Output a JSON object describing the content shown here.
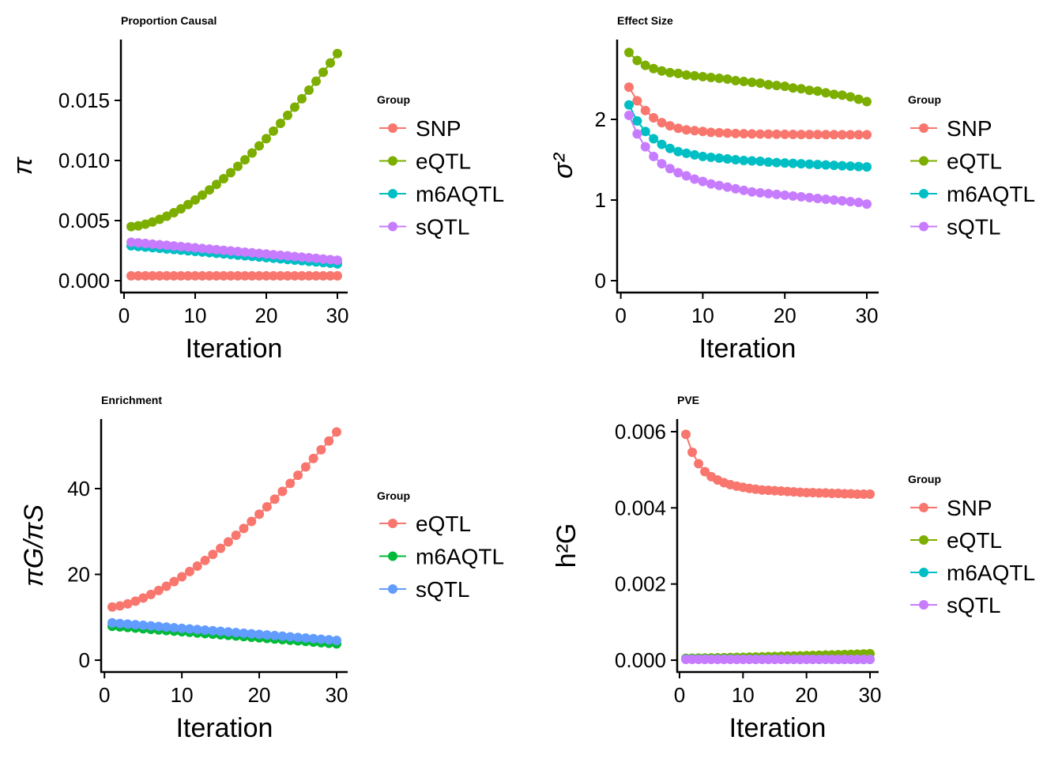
{
  "chart_data": [
    {
      "type": "line",
      "title": "Proportion Causal",
      "xlabel": "Iteration",
      "ylabel": "π",
      "xlim": [
        0,
        30
      ],
      "ylim": [
        -0.0005,
        0.0195
      ],
      "xticks": [
        0,
        10,
        20,
        30
      ],
      "yticks": [
        0.0,
        0.005,
        0.01,
        0.015
      ],
      "ytick_labels": [
        "0.000",
        "0.005",
        "0.010",
        "0.015"
      ],
      "legend": {
        "title": "Group",
        "position": "right"
      },
      "series": [
        {
          "name": "SNP",
          "color": "#F8766D",
          "start": 0.0004,
          "end": 0.0004,
          "shape": 1
        },
        {
          "name": "eQTL",
          "color": "#7CAE00",
          "start": 0.0045,
          "end": 0.0189,
          "shape": 1.6
        },
        {
          "name": "m6AQTL",
          "color": "#00BFC4",
          "start": 0.0029,
          "end": 0.0014,
          "shape": 1
        },
        {
          "name": "sQTL",
          "color": "#C77CFF",
          "start": 0.0032,
          "end": 0.0017,
          "shape": 1
        }
      ]
    },
    {
      "type": "line",
      "title": "Effect Size",
      "xlabel": "Iteration",
      "ylabel": "σ²",
      "xlim": [
        0,
        30
      ],
      "ylim": [
        -0.12,
        3.05
      ],
      "xticks": [
        0,
        10,
        20,
        30
      ],
      "yticks": [
        0,
        1,
        2
      ],
      "ytick_labels": [
        "0",
        "1",
        "2"
      ],
      "legend": {
        "title": "Group",
        "position": "right"
      },
      "series": [
        {
          "name": "SNP",
          "color": "#F8766D",
          "values": [
            2.4,
            2.23,
            2.11,
            2.02,
            1.96,
            1.92,
            1.89,
            1.87,
            1.86,
            1.85,
            1.84,
            1.835,
            1.83,
            1.825,
            1.822,
            1.82,
            1.818,
            1.817,
            1.816,
            1.815,
            1.814,
            1.813,
            1.812,
            1.812,
            1.811,
            1.811,
            1.81,
            1.81,
            1.81,
            1.81
          ]
        },
        {
          "name": "eQTL",
          "color": "#7CAE00",
          "values": [
            2.83,
            2.73,
            2.67,
            2.63,
            2.6,
            2.58,
            2.57,
            2.55,
            2.54,
            2.53,
            2.52,
            2.51,
            2.5,
            2.48,
            2.47,
            2.46,
            2.45,
            2.43,
            2.42,
            2.41,
            2.39,
            2.38,
            2.36,
            2.35,
            2.33,
            2.31,
            2.3,
            2.28,
            2.25,
            2.22
          ]
        },
        {
          "name": "m6AQTL",
          "color": "#00BFC4",
          "values": [
            2.18,
            1.98,
            1.85,
            1.76,
            1.69,
            1.64,
            1.6,
            1.58,
            1.56,
            1.54,
            1.53,
            1.52,
            1.51,
            1.5,
            1.49,
            1.485,
            1.48,
            1.47,
            1.465,
            1.46,
            1.455,
            1.45,
            1.445,
            1.44,
            1.435,
            1.43,
            1.425,
            1.42,
            1.415,
            1.41
          ]
        },
        {
          "name": "sQTL",
          "color": "#C77CFF",
          "values": [
            2.05,
            1.82,
            1.66,
            1.54,
            1.45,
            1.39,
            1.34,
            1.3,
            1.26,
            1.23,
            1.2,
            1.18,
            1.16,
            1.14,
            1.12,
            1.1,
            1.09,
            1.08,
            1.07,
            1.06,
            1.05,
            1.04,
            1.03,
            1.02,
            1.01,
            1.0,
            0.99,
            0.98,
            0.97,
            0.95
          ]
        }
      ]
    },
    {
      "type": "line",
      "title": "Enrichment",
      "xlabel": "Iteration",
      "ylabel": "πG/πS",
      "xlim": [
        0,
        30
      ],
      "ylim": [
        -2.5,
        56
      ],
      "xticks": [
        0,
        10,
        20,
        30
      ],
      "yticks": [
        0,
        20,
        40
      ],
      "ytick_labels": [
        "0",
        "20",
        "40"
      ],
      "legend": {
        "title": "Group",
        "position": "right"
      },
      "series": [
        {
          "name": "eQTL",
          "color": "#F8766D",
          "start": 12.4,
          "end": 53.2,
          "shape": 1.5
        },
        {
          "name": "m6AQTL",
          "color": "#00BA38",
          "start": 7.9,
          "end": 3.8,
          "shape": 1
        },
        {
          "name": "sQTL",
          "color": "#619CFF",
          "start": 8.7,
          "end": 4.6,
          "shape": 1
        }
      ]
    },
    {
      "type": "line",
      "title": "PVE",
      "xlabel": "Iteration",
      "ylabel": "h²G",
      "xlim": [
        0,
        30
      ],
      "ylim": [
        -0.0003,
        0.0062
      ],
      "xticks": [
        0,
        10,
        20,
        30
      ],
      "yticks": [
        0.0,
        0.002,
        0.004,
        0.006
      ],
      "ytick_labels": [
        "0.000",
        "0.002",
        "0.004",
        "0.006"
      ],
      "legend": {
        "title": "Group",
        "position": "right"
      },
      "series": [
        {
          "name": "SNP",
          "color": "#F8766D",
          "values": [
            0.00593,
            0.00546,
            0.00516,
            0.00495,
            0.00482,
            0.00473,
            0.00466,
            0.00461,
            0.00457,
            0.00454,
            0.00451,
            0.00449,
            0.00447,
            0.00446,
            0.00445,
            0.00444,
            0.00443,
            0.00442,
            0.00441,
            0.0044,
            0.0044,
            0.00439,
            0.00439,
            0.00438,
            0.00438,
            0.00437,
            0.00437,
            0.00436,
            0.00436,
            0.00436
          ]
        },
        {
          "name": "eQTL",
          "color": "#7CAE00",
          "start": 5e-05,
          "end": 0.00017,
          "shape": 1.3
        },
        {
          "name": "m6AQTL",
          "color": "#00BFC4",
          "start": 3e-05,
          "end": 2e-05,
          "shape": 1
        },
        {
          "name": "sQTL",
          "color": "#C77CFF",
          "start": 2e-05,
          "end": 2e-05,
          "shape": 1
        }
      ]
    }
  ]
}
